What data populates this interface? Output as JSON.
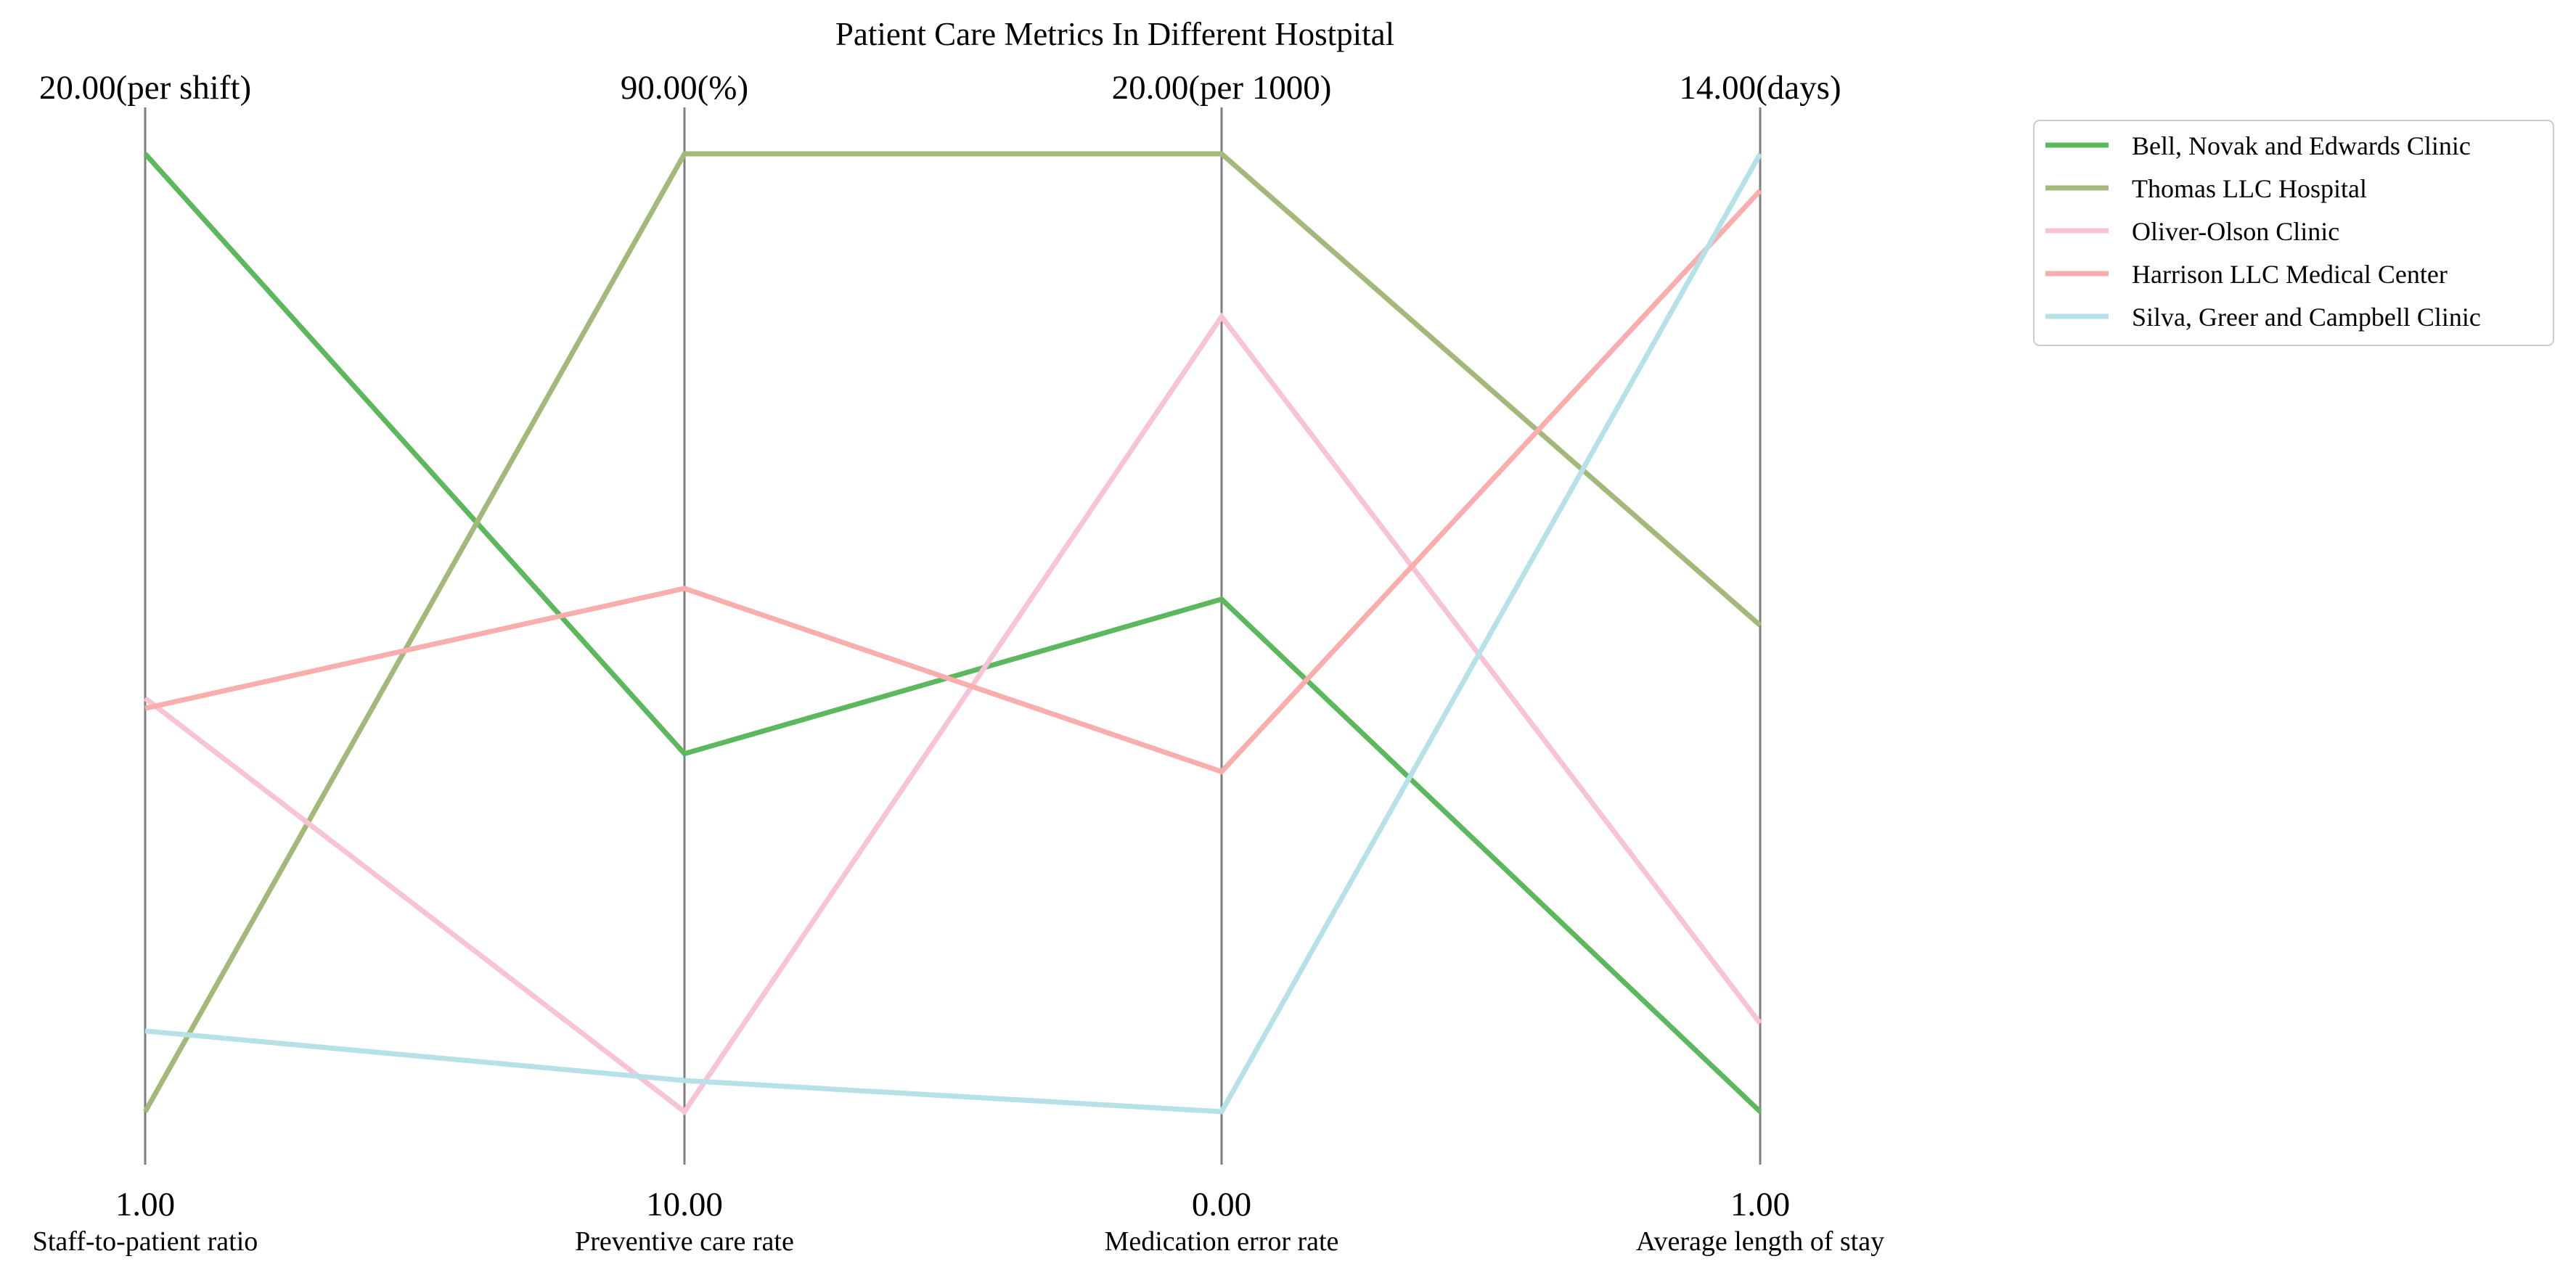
{
  "chart_data": {
    "type": "parallel-coordinates",
    "title": "Patient Care Metrics In Different Hostpital",
    "axes": [
      {
        "name": "Staff-to-patient ratio",
        "min": 1.0,
        "max": 20.0,
        "min_label": "1.00",
        "max_label": "20.00(per shift)"
      },
      {
        "name": "Preventive care rate",
        "min": 10.0,
        "max": 90.0,
        "min_label": "10.00",
        "max_label": "90.00(%)"
      },
      {
        "name": "Medication error rate",
        "min": 0.0,
        "max": 20.0,
        "min_label": "0.00",
        "max_label": "20.00(per 1000)"
      },
      {
        "name": "Average length of stay",
        "min": 1.0,
        "max": 14.0,
        "min_label": "1.00",
        "max_label": "14.00(days)"
      }
    ],
    "series": [
      {
        "name": "Bell, Novak and Edwards  Clinic",
        "color": "#5cb85c",
        "values": [
          20.0,
          39.9,
          10.7,
          1.0
        ]
      },
      {
        "name": "Thomas LLC  Hospital",
        "color": "#a3b97a",
        "values": [
          1.0,
          90.0,
          20.0,
          7.6
        ]
      },
      {
        "name": "Oliver-Olson  Clinic",
        "color": "#f7c3d5",
        "values": [
          9.2,
          10.0,
          16.6,
          2.2
        ]
      },
      {
        "name": "Harrison LLC  Medical Center",
        "color": "#f9adac",
        "values": [
          9.0,
          53.7,
          7.1,
          13.5
        ]
      },
      {
        "name": "Silva, Greer and Campbell  Clinic",
        "color": "#b5e1e7",
        "values": [
          2.6,
          12.6,
          0.0,
          14.0
        ]
      }
    ],
    "legend_position": "top-right",
    "grid": false
  }
}
